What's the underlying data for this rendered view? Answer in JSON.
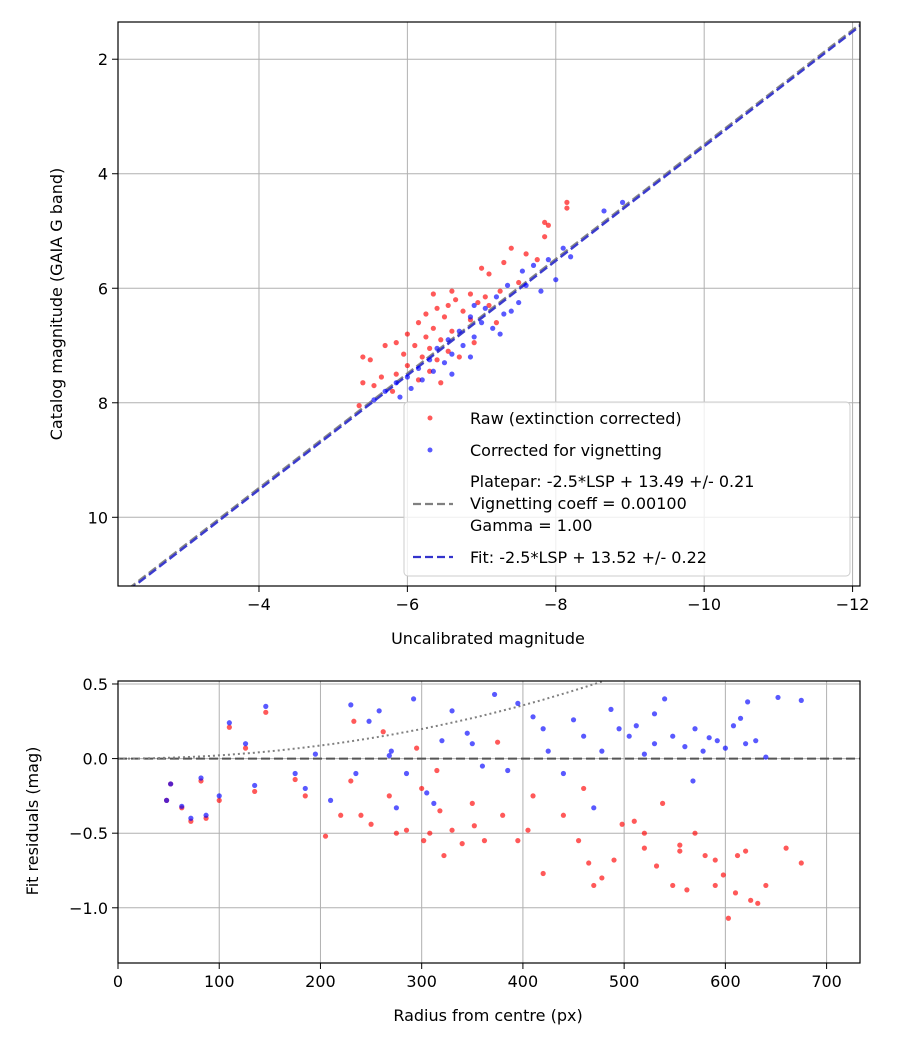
{
  "chart_data": [
    {
      "type": "scatter",
      "xlabel": "Uncalibrated magnitude",
      "ylabel": "Catalog magnitude (GAIA G band)",
      "xlim": [
        -2.1,
        -12.1
      ],
      "ylim": [
        11.2,
        1.35
      ],
      "x_inverted": true,
      "y_inverted": true,
      "xticks": [
        -4,
        -6,
        -8,
        -10,
        -12
      ],
      "xtick_labels": [
        "−4",
        "−6",
        "−8",
        "−10",
        "−12"
      ],
      "yticks": [
        2,
        4,
        6,
        8,
        10
      ],
      "ytick_labels": [
        "2",
        "4",
        "6",
        "8",
        "10"
      ],
      "grid": true,
      "legend_position": "lower-right",
      "series": [
        {
          "name": "Raw (extinction corrected)",
          "kind": "scatter",
          "color": "#ff0000",
          "points": [
            [
              -8.15,
              4.5
            ],
            [
              -8.15,
              4.6
            ],
            [
              -7.85,
              4.85
            ],
            [
              -7.9,
              4.9
            ],
            [
              -7.85,
              5.1
            ],
            [
              -7.4,
              5.3
            ],
            [
              -7.6,
              5.4
            ],
            [
              -7.3,
              5.55
            ],
            [
              -7.75,
              5.5
            ],
            [
              -7.0,
              5.65
            ],
            [
              -7.1,
              5.75
            ],
            [
              -7.5,
              5.9
            ],
            [
              -6.85,
              6.1
            ],
            [
              -7.05,
              6.15
            ],
            [
              -7.25,
              6.05
            ],
            [
              -6.65,
              6.2
            ],
            [
              -6.95,
              6.25
            ],
            [
              -6.55,
              6.3
            ],
            [
              -6.4,
              6.35
            ],
            [
              -6.75,
              6.4
            ],
            [
              -7.1,
              6.3
            ],
            [
              -6.25,
              6.45
            ],
            [
              -6.5,
              6.5
            ],
            [
              -6.85,
              6.55
            ],
            [
              -6.15,
              6.6
            ],
            [
              -6.35,
              6.7
            ],
            [
              -6.6,
              6.75
            ],
            [
              -6.0,
              6.8
            ],
            [
              -6.25,
              6.85
            ],
            [
              -6.45,
              6.9
            ],
            [
              -5.85,
              6.95
            ],
            [
              -6.1,
              7.0
            ],
            [
              -6.3,
              7.05
            ],
            [
              -6.55,
              7.1
            ],
            [
              -5.95,
              7.15
            ],
            [
              -5.7,
              7.0
            ],
            [
              -6.2,
              7.2
            ],
            [
              -6.4,
              7.25
            ],
            [
              -5.4,
              7.2
            ],
            [
              -5.5,
              7.25
            ],
            [
              -6.0,
              7.35
            ],
            [
              -6.3,
              7.45
            ],
            [
              -5.85,
              7.5
            ],
            [
              -5.65,
              7.55
            ],
            [
              -6.15,
              7.6
            ],
            [
              -5.4,
              7.65
            ],
            [
              -5.55,
              7.7
            ],
            [
              -6.45,
              7.65
            ],
            [
              -5.8,
              7.8
            ],
            [
              -5.35,
              8.05
            ],
            [
              -6.7,
              7.2
            ],
            [
              -6.9,
              6.95
            ],
            [
              -7.2,
              6.6
            ],
            [
              -6.6,
              6.05
            ],
            [
              -6.35,
              6.1
            ]
          ]
        },
        {
          "name": "Corrected for vignetting",
          "kind": "scatter",
          "color": "#0000ff",
          "points": [
            [
              -8.9,
              4.5
            ],
            [
              -8.65,
              4.65
            ],
            [
              -8.1,
              5.3
            ],
            [
              -8.2,
              5.45
            ],
            [
              -7.9,
              5.5
            ],
            [
              -7.7,
              5.6
            ],
            [
              -7.55,
              5.7
            ],
            [
              -8.0,
              5.85
            ],
            [
              -7.35,
              5.95
            ],
            [
              -7.8,
              6.05
            ],
            [
              -7.2,
              6.15
            ],
            [
              -7.5,
              6.25
            ],
            [
              -7.05,
              6.35
            ],
            [
              -7.3,
              6.45
            ],
            [
              -6.85,
              6.5
            ],
            [
              -7.0,
              6.6
            ],
            [
              -7.15,
              6.7
            ],
            [
              -6.7,
              6.75
            ],
            [
              -6.9,
              6.85
            ],
            [
              -7.25,
              6.8
            ],
            [
              -6.55,
              6.9
            ],
            [
              -6.75,
              7.0
            ],
            [
              -6.4,
              7.05
            ],
            [
              -6.6,
              7.15
            ],
            [
              -6.85,
              7.2
            ],
            [
              -6.3,
              7.25
            ],
            [
              -6.5,
              7.3
            ],
            [
              -6.15,
              7.4
            ],
            [
              -6.35,
              7.45
            ],
            [
              -6.0,
              7.55
            ],
            [
              -6.2,
              7.6
            ],
            [
              -5.85,
              7.65
            ],
            [
              -6.05,
              7.75
            ],
            [
              -5.7,
              7.8
            ],
            [
              -5.9,
              7.9
            ],
            [
              -5.55,
              7.95
            ],
            [
              -6.6,
              7.5
            ],
            [
              -7.4,
              6.4
            ],
            [
              -7.6,
              5.95
            ],
            [
              -6.9,
              6.3
            ]
          ]
        },
        {
          "name": "Platepar: -2.5*LSP + 13.49 +/- 0.21\nVignetting coeff = 0.00100\nGamma = 1.00",
          "name_lines": [
            "Platepar: -2.5*LSP + 13.49 +/- 0.21",
            "Vignetting coeff = 0.00100",
            "Gamma = 1.00"
          ],
          "kind": "line",
          "style": "dashed",
          "color": "#808080",
          "slope": 1.0,
          "intercept": 13.49
        },
        {
          "name": "Fit: -2.5*LSP + 13.52 +/- 0.22",
          "kind": "line",
          "style": "dashed",
          "color": "#3333cc",
          "slope": 1.0,
          "intercept": 13.52
        }
      ]
    },
    {
      "type": "scatter",
      "xlabel": "Radius from centre (px)",
      "ylabel": "Fit residuals (mag)",
      "xlim": [
        0,
        733
      ],
      "ylim": [
        -1.37,
        0.52
      ],
      "xticks": [
        0,
        100,
        200,
        300,
        400,
        500,
        600,
        700
      ],
      "xtick_labels": [
        "0",
        "100",
        "200",
        "300",
        "400",
        "500",
        "600",
        "700"
      ],
      "yticks": [
        0.5,
        0.0,
        -0.5,
        -1.0
      ],
      "ytick_labels": [
        "0.5",
        "0.0",
        "−0.5",
        "−1.0"
      ],
      "grid": true,
      "series": [
        {
          "kind": "scatter",
          "color": "#ff0000",
          "points": [
            [
              48,
              -0.28
            ],
            [
              52,
              -0.17
            ],
            [
              63,
              -0.33
            ],
            [
              72,
              -0.42
            ],
            [
              82,
              -0.15
            ],
            [
              87,
              -0.4
            ],
            [
              100,
              -0.28
            ],
            [
              110,
              0.21
            ],
            [
              126,
              0.07
            ],
            [
              135,
              -0.22
            ],
            [
              146,
              0.31
            ],
            [
              175,
              -0.14
            ],
            [
              185,
              -0.25
            ],
            [
              205,
              -0.52
            ],
            [
              220,
              -0.38
            ],
            [
              233,
              0.25
            ],
            [
              240,
              -0.38
            ],
            [
              250,
              -0.44
            ],
            [
              262,
              0.18
            ],
            [
              268,
              -0.25
            ],
            [
              275,
              -0.5
            ],
            [
              285,
              -0.48
            ],
            [
              295,
              0.07
            ],
            [
              302,
              -0.55
            ],
            [
              308,
              -0.5
            ],
            [
              318,
              -0.35
            ],
            [
              322,
              -0.65
            ],
            [
              330,
              -0.48
            ],
            [
              340,
              -0.57
            ],
            [
              352,
              -0.45
            ],
            [
              362,
              -0.55
            ],
            [
              375,
              0.11
            ],
            [
              380,
              -0.38
            ],
            [
              395,
              -0.55
            ],
            [
              405,
              -0.48
            ],
            [
              420,
              -0.77
            ],
            [
              440,
              -0.38
            ],
            [
              455,
              -0.55
            ],
            [
              465,
              -0.7
            ],
            [
              470,
              -0.85
            ],
            [
              478,
              -0.8
            ],
            [
              490,
              -0.68
            ],
            [
              498,
              -0.44
            ],
            [
              510,
              -0.42
            ],
            [
              520,
              -0.6
            ],
            [
              532,
              -0.72
            ],
            [
              538,
              -0.3
            ],
            [
              548,
              -0.85
            ],
            [
              555,
              -0.58
            ],
            [
              562,
              -0.88
            ],
            [
              570,
              -0.5
            ],
            [
              580,
              -0.65
            ],
            [
              590,
              -0.68
            ],
            [
              598,
              -0.78
            ],
            [
              603,
              -1.07
            ],
            [
              612,
              -0.65
            ],
            [
              620,
              -0.62
            ],
            [
              625,
              -0.95
            ],
            [
              632,
              -0.97
            ],
            [
              640,
              -0.85
            ],
            [
              660,
              -0.6
            ],
            [
              675,
              -0.7
            ],
            [
              590,
              -0.85
            ],
            [
              555,
              -0.62
            ],
            [
              230,
              -0.15
            ],
            [
              300,
              -0.2
            ],
            [
              315,
              -0.08
            ],
            [
              350,
              -0.3
            ],
            [
              410,
              -0.25
            ],
            [
              460,
              -0.2
            ],
            [
              520,
              -0.5
            ],
            [
              610,
              -0.9
            ]
          ]
        },
        {
          "kind": "scatter",
          "color": "#0000ff",
          "points": [
            [
              48,
              -0.28
            ],
            [
              52,
              -0.17
            ],
            [
              63,
              -0.32
            ],
            [
              72,
              -0.4
            ],
            [
              82,
              -0.13
            ],
            [
              87,
              -0.38
            ],
            [
              100,
              -0.25
            ],
            [
              110,
              0.24
            ],
            [
              126,
              0.1
            ],
            [
              135,
              -0.18
            ],
            [
              146,
              0.35
            ],
            [
              175,
              -0.1
            ],
            [
              185,
              -0.2
            ],
            [
              195,
              0.03
            ],
            [
              210,
              -0.28
            ],
            [
              230,
              0.36
            ],
            [
              235,
              -0.1
            ],
            [
              248,
              0.25
            ],
            [
              258,
              0.32
            ],
            [
              268,
              0.02
            ],
            [
              275,
              -0.33
            ],
            [
              285,
              -0.1
            ],
            [
              292,
              0.4
            ],
            [
              305,
              -0.23
            ],
            [
              312,
              -0.3
            ],
            [
              320,
              0.12
            ],
            [
              330,
              0.32
            ],
            [
              345,
              0.17
            ],
            [
              360,
              -0.05
            ],
            [
              372,
              0.43
            ],
            [
              385,
              -0.08
            ],
            [
              395,
              0.37
            ],
            [
              410,
              0.28
            ],
            [
              425,
              0.05
            ],
            [
              440,
              -0.1
            ],
            [
              450,
              0.26
            ],
            [
              460,
              0.15
            ],
            [
              470,
              -0.33
            ],
            [
              478,
              0.05
            ],
            [
              487,
              0.33
            ],
            [
              495,
              0.2
            ],
            [
              505,
              0.15
            ],
            [
              512,
              0.22
            ],
            [
              520,
              0.03
            ],
            [
              530,
              0.1
            ],
            [
              540,
              0.4
            ],
            [
              548,
              0.15
            ],
            [
              560,
              0.08
            ],
            [
              568,
              -0.15
            ],
            [
              578,
              0.05
            ],
            [
              584,
              0.14
            ],
            [
              592,
              0.12
            ],
            [
              600,
              0.07
            ],
            [
              608,
              0.22
            ],
            [
              615,
              0.27
            ],
            [
              622,
              0.38
            ],
            [
              630,
              0.12
            ],
            [
              640,
              0.01
            ],
            [
              652,
              0.41
            ],
            [
              675,
              0.39
            ],
            [
              620,
              0.1
            ],
            [
              570,
              0.2
            ],
            [
              530,
              0.3
            ],
            [
              420,
              0.2
            ],
            [
              350,
              0.1
            ],
            [
              270,
              0.05
            ]
          ]
        },
        {
          "kind": "line",
          "style": "dashed",
          "color": "#555555",
          "y": 0.0
        },
        {
          "kind": "curve",
          "style": "dotted",
          "color": "#808080",
          "formula": "-2.5*log10(cos(0.001*r)^4)"
        }
      ]
    }
  ]
}
